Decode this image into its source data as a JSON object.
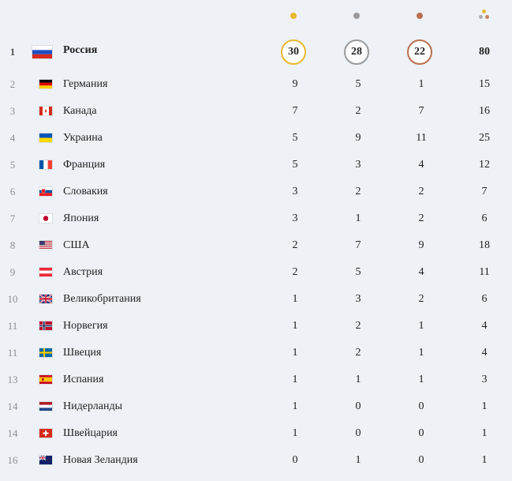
{
  "colors": {
    "gold": "#e8b92c",
    "silver": "#9a9a9a",
    "bronze": "#b9704d",
    "background": "#eef1f5"
  },
  "header_icons": [
    "gold-medal-dot-icon",
    "silver-medal-dot-icon",
    "bronze-medal-dot-icon",
    "total-medals-icon"
  ],
  "rows": [
    {
      "rank": "1",
      "country": "Россия",
      "gold": "30",
      "silver": "28",
      "bronze": "22",
      "total": "80"
    },
    {
      "rank": "2",
      "country": "Германия",
      "gold": "9",
      "silver": "5",
      "bronze": "1",
      "total": "15"
    },
    {
      "rank": "3",
      "country": "Канада",
      "gold": "7",
      "silver": "2",
      "bronze": "7",
      "total": "16"
    },
    {
      "rank": "4",
      "country": "Украина",
      "gold": "5",
      "silver": "9",
      "bronze": "11",
      "total": "25"
    },
    {
      "rank": "5",
      "country": "Франция",
      "gold": "5",
      "silver": "3",
      "bronze": "4",
      "total": "12"
    },
    {
      "rank": "6",
      "country": "Словакия",
      "gold": "3",
      "silver": "2",
      "bronze": "2",
      "total": "7"
    },
    {
      "rank": "7",
      "country": "Япония",
      "gold": "3",
      "silver": "1",
      "bronze": "2",
      "total": "6"
    },
    {
      "rank": "8",
      "country": "США",
      "gold": "2",
      "silver": "7",
      "bronze": "9",
      "total": "18"
    },
    {
      "rank": "9",
      "country": "Австрия",
      "gold": "2",
      "silver": "5",
      "bronze": "4",
      "total": "11"
    },
    {
      "rank": "10",
      "country": "Великобритания",
      "gold": "1",
      "silver": "3",
      "bronze": "2",
      "total": "6"
    },
    {
      "rank": "11",
      "country": "Норвегия",
      "gold": "1",
      "silver": "2",
      "bronze": "1",
      "total": "4"
    },
    {
      "rank": "11",
      "country": "Швеция",
      "gold": "1",
      "silver": "2",
      "bronze": "1",
      "total": "4"
    },
    {
      "rank": "13",
      "country": "Испания",
      "gold": "1",
      "silver": "1",
      "bronze": "1",
      "total": "3"
    },
    {
      "rank": "14",
      "country": "Нидерланды",
      "gold": "1",
      "silver": "0",
      "bronze": "0",
      "total": "1"
    },
    {
      "rank": "14",
      "country": "Швейцария",
      "gold": "1",
      "silver": "0",
      "bronze": "0",
      "total": "1"
    },
    {
      "rank": "16",
      "country": "Новая Зеландия",
      "gold": "0",
      "silver": "1",
      "bronze": "0",
      "total": "1"
    }
  ]
}
